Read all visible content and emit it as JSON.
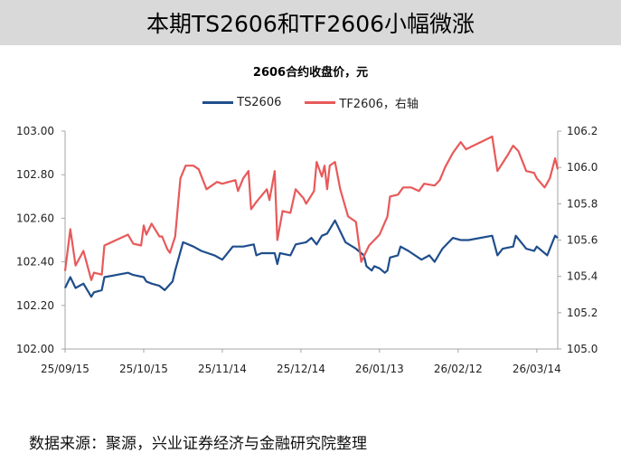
{
  "banner_title": "本期TS2606和TF2606小幅微涨",
  "footer": "数据来源：聚源，兴业证券经济与金融研究院整理",
  "chart_data": {
    "type": "line",
    "title": "2606合约收盘价，元",
    "xlabel": "",
    "ylabel": "",
    "x_range": [
      "2025-09-15",
      "2026-03-22"
    ],
    "x_ticks": [
      {
        "date": "2025-09-15",
        "label": "25/09/15"
      },
      {
        "date": "2025-10-15",
        "label": "25/10/15"
      },
      {
        "date": "2025-11-14",
        "label": "25/11/14"
      },
      {
        "date": "2025-12-14",
        "label": "25/12/14"
      },
      {
        "date": "2026-01-13",
        "label": "26/01/13"
      },
      {
        "date": "2026-02-12",
        "label": "26/02/12"
      },
      {
        "date": "2026-03-14",
        "label": "26/03/14"
      }
    ],
    "ylim_left": [
      102.0,
      103.0
    ],
    "yticks_left": [
      "102.00",
      "102.20",
      "102.40",
      "102.60",
      "102.80",
      "103.00"
    ],
    "ylim_right": [
      105.0,
      106.2
    ],
    "yticks_right": [
      "105.0",
      "105.2",
      "105.4",
      "105.6",
      "105.8",
      "106.0",
      "106.2"
    ],
    "grid": false,
    "legend_position": "top-center",
    "series": [
      {
        "name": "TS2606",
        "axis": "left",
        "color": "#1f4e8c",
        "points": [
          [
            "2025-09-15",
            102.28
          ],
          [
            "2025-09-17",
            102.33
          ],
          [
            "2025-09-19",
            102.28
          ],
          [
            "2025-09-22",
            102.3
          ],
          [
            "2025-09-25",
            102.24
          ],
          [
            "2025-09-26",
            102.26
          ],
          [
            "2025-09-29",
            102.27
          ],
          [
            "2025-09-30",
            102.33
          ],
          [
            "2025-10-09",
            102.35
          ],
          [
            "2025-10-11",
            102.34
          ],
          [
            "2025-10-15",
            102.33
          ],
          [
            "2025-10-16",
            102.31
          ],
          [
            "2025-10-18",
            102.3
          ],
          [
            "2025-10-21",
            102.29
          ],
          [
            "2025-10-23",
            102.27
          ],
          [
            "2025-10-26",
            102.31
          ],
          [
            "2025-10-27",
            102.36
          ],
          [
            "2025-10-30",
            102.49
          ],
          [
            "2025-11-03",
            102.47
          ],
          [
            "2025-11-06",
            102.45
          ],
          [
            "2025-11-11",
            102.43
          ],
          [
            "2025-11-14",
            102.41
          ],
          [
            "2025-11-18",
            102.47
          ],
          [
            "2025-11-22",
            102.47
          ],
          [
            "2025-11-26",
            102.48
          ],
          [
            "2025-11-27",
            102.43
          ],
          [
            "2025-11-29",
            102.44
          ],
          [
            "2025-12-04",
            102.44
          ],
          [
            "2025-12-05",
            102.39
          ],
          [
            "2025-12-06",
            102.44
          ],
          [
            "2025-12-10",
            102.43
          ],
          [
            "2025-12-12",
            102.48
          ],
          [
            "2025-12-16",
            102.49
          ],
          [
            "2025-12-18",
            102.51
          ],
          [
            "2025-12-20",
            102.48
          ],
          [
            "2025-12-22",
            102.52
          ],
          [
            "2025-12-24",
            102.53
          ],
          [
            "2025-12-27",
            102.59
          ],
          [
            "2025-12-29",
            102.54
          ],
          [
            "2025-12-31",
            102.49
          ],
          [
            "2026-01-04",
            102.46
          ],
          [
            "2026-01-07",
            102.43
          ],
          [
            "2026-01-08",
            102.38
          ],
          [
            "2026-01-10",
            102.36
          ],
          [
            "2026-01-11",
            102.38
          ],
          [
            "2026-01-13",
            102.37
          ],
          [
            "2026-01-15",
            102.35
          ],
          [
            "2026-01-16",
            102.36
          ],
          [
            "2026-01-17",
            102.42
          ],
          [
            "2026-01-20",
            102.43
          ],
          [
            "2026-01-21",
            102.47
          ],
          [
            "2026-01-24",
            102.45
          ],
          [
            "2026-01-29",
            102.41
          ],
          [
            "2026-02-01",
            102.43
          ],
          [
            "2026-02-03",
            102.4
          ],
          [
            "2026-02-05",
            102.44
          ],
          [
            "2026-02-06",
            102.46
          ],
          [
            "2026-02-10",
            102.51
          ],
          [
            "2026-02-13",
            102.5
          ],
          [
            "2026-02-16",
            102.5
          ],
          [
            "2026-02-25",
            102.52
          ],
          [
            "2026-02-27",
            102.43
          ],
          [
            "2026-03-01",
            102.46
          ],
          [
            "2026-03-05",
            102.47
          ],
          [
            "2026-03-06",
            102.52
          ],
          [
            "2026-03-10",
            102.46
          ],
          [
            "2026-03-13",
            102.45
          ],
          [
            "2026-03-14",
            102.47
          ],
          [
            "2026-03-18",
            102.43
          ],
          [
            "2026-03-21",
            102.52
          ],
          [
            "2026-03-22",
            102.51
          ]
        ]
      },
      {
        "name": "TF2606，右轴",
        "axis": "right",
        "color": "#e8595a",
        "points": [
          [
            "2025-09-15",
            105.43
          ],
          [
            "2025-09-17",
            105.66
          ],
          [
            "2025-09-19",
            105.46
          ],
          [
            "2025-09-22",
            105.54
          ],
          [
            "2025-09-25",
            105.38
          ],
          [
            "2025-09-26",
            105.42
          ],
          [
            "2025-09-29",
            105.41
          ],
          [
            "2025-09-30",
            105.57
          ],
          [
            "2025-10-09",
            105.63
          ],
          [
            "2025-10-11",
            105.58
          ],
          [
            "2025-10-14",
            105.57
          ],
          [
            "2025-10-15",
            105.68
          ],
          [
            "2025-10-16",
            105.63
          ],
          [
            "2025-10-18",
            105.69
          ],
          [
            "2025-10-21",
            105.62
          ],
          [
            "2025-10-22",
            105.62
          ],
          [
            "2025-10-24",
            105.55
          ],
          [
            "2025-10-25",
            105.53
          ],
          [
            "2025-10-27",
            105.62
          ],
          [
            "2025-10-29",
            105.94
          ],
          [
            "2025-10-31",
            106.01
          ],
          [
            "2025-11-03",
            106.01
          ],
          [
            "2025-11-05",
            105.99
          ],
          [
            "2025-11-08",
            105.88
          ],
          [
            "2025-11-12",
            105.92
          ],
          [
            "2025-11-14",
            105.91
          ],
          [
            "2025-11-19",
            105.93
          ],
          [
            "2025-11-20",
            105.87
          ],
          [
            "2025-11-22",
            105.94
          ],
          [
            "2025-11-24",
            105.98
          ],
          [
            "2025-11-25",
            105.77
          ],
          [
            "2025-11-27",
            105.81
          ],
          [
            "2025-12-01",
            105.88
          ],
          [
            "2025-12-02",
            105.82
          ],
          [
            "2025-12-04",
            105.98
          ],
          [
            "2025-12-05",
            105.6
          ],
          [
            "2025-12-07",
            105.76
          ],
          [
            "2025-12-10",
            105.75
          ],
          [
            "2025-12-12",
            105.88
          ],
          [
            "2025-12-15",
            105.83
          ],
          [
            "2025-12-16",
            105.8
          ],
          [
            "2025-12-19",
            105.87
          ],
          [
            "2025-12-20",
            106.03
          ],
          [
            "2025-12-22",
            105.95
          ],
          [
            "2025-12-23",
            106.01
          ],
          [
            "2025-12-24",
            105.88
          ],
          [
            "2025-12-25",
            106.01
          ],
          [
            "2025-12-27",
            106.03
          ],
          [
            "2025-12-29",
            105.88
          ],
          [
            "2026-01-01",
            105.73
          ],
          [
            "2026-01-04",
            105.7
          ],
          [
            "2026-01-06",
            105.48
          ],
          [
            "2026-01-09",
            105.57
          ],
          [
            "2026-01-13",
            105.63
          ],
          [
            "2026-01-16",
            105.73
          ],
          [
            "2026-01-17",
            105.84
          ],
          [
            "2026-01-20",
            105.85
          ],
          [
            "2026-01-22",
            105.89
          ],
          [
            "2026-01-25",
            105.89
          ],
          [
            "2026-01-28",
            105.87
          ],
          [
            "2026-01-30",
            105.91
          ],
          [
            "2026-02-03",
            105.9
          ],
          [
            "2026-02-05",
            105.93
          ],
          [
            "2026-02-07",
            106.0
          ],
          [
            "2026-02-10",
            106.08
          ],
          [
            "2026-02-11",
            106.1
          ],
          [
            "2026-02-13",
            106.14
          ],
          [
            "2026-02-15",
            106.1
          ],
          [
            "2026-02-25",
            106.17
          ],
          [
            "2026-02-27",
            105.98
          ],
          [
            "2026-03-03",
            106.07
          ],
          [
            "2026-03-05",
            106.12
          ],
          [
            "2026-03-07",
            106.09
          ],
          [
            "2026-03-10",
            105.98
          ],
          [
            "2026-03-13",
            105.97
          ],
          [
            "2026-03-14",
            105.94
          ],
          [
            "2026-03-17",
            105.89
          ],
          [
            "2026-03-19",
            105.94
          ],
          [
            "2026-03-21",
            106.05
          ],
          [
            "2026-03-22",
            105.99
          ]
        ]
      }
    ]
  }
}
